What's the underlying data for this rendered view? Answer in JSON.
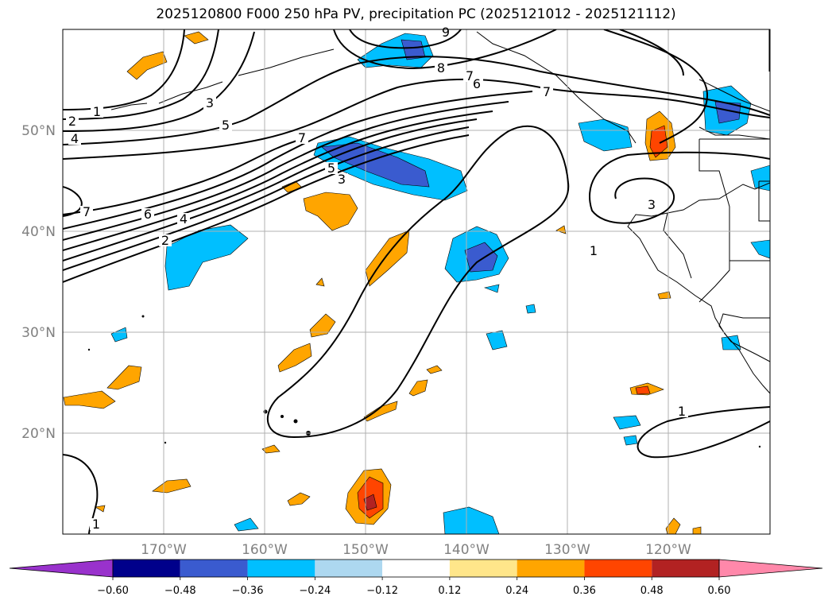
{
  "figure": {
    "title": "2025120800 F000 250 hPa PV, precipitation PC (2025121012 - 2025121112)"
  },
  "chart_data": {
    "type": "map",
    "title": "2025120800 F000 250 hPa PV, precipitation PC (2025121012 - 2025121112)",
    "lon_range": [
      -180,
      -110
    ],
    "lat_range": [
      10,
      60
    ],
    "grid": true,
    "lon_ticks": [
      "170°W",
      "160°W",
      "150°W",
      "140°W",
      "130°W",
      "120°W"
    ],
    "lat_ticks": [
      "20°N",
      "30°N",
      "40°N",
      "50°N"
    ],
    "pv_contour_levels": [
      1,
      2,
      3,
      4,
      5,
      6,
      7,
      8,
      9
    ],
    "colorbar": {
      "boundaries": [
        -0.6,
        -0.48,
        -0.36,
        -0.24,
        -0.12,
        0.12,
        0.24,
        0.36,
        0.48,
        0.6
      ],
      "tick_labels": [
        "−0.60",
        "−0.48",
        "−0.36",
        "−0.24",
        "−0.12",
        "0.12",
        "0.24",
        "0.36",
        "0.48",
        "0.60"
      ],
      "colors": [
        "#9932cc",
        "#00008b",
        "#3a5bcf",
        "#00bfff",
        "#add8f0",
        "#ffffff",
        "#ffe68a",
        "#ffa500",
        "#ff4500",
        "#b22222",
        "#ff88aa"
      ],
      "extend": "both"
    }
  },
  "map_text": {
    "contour_labels": [
      "9",
      "8",
      "7",
      "6",
      "7",
      "2",
      "1",
      "4",
      "3",
      "5",
      "7",
      "5",
      "3",
      "7",
      "6",
      "4",
      "2",
      "3",
      "1",
      "1",
      "1"
    ]
  }
}
